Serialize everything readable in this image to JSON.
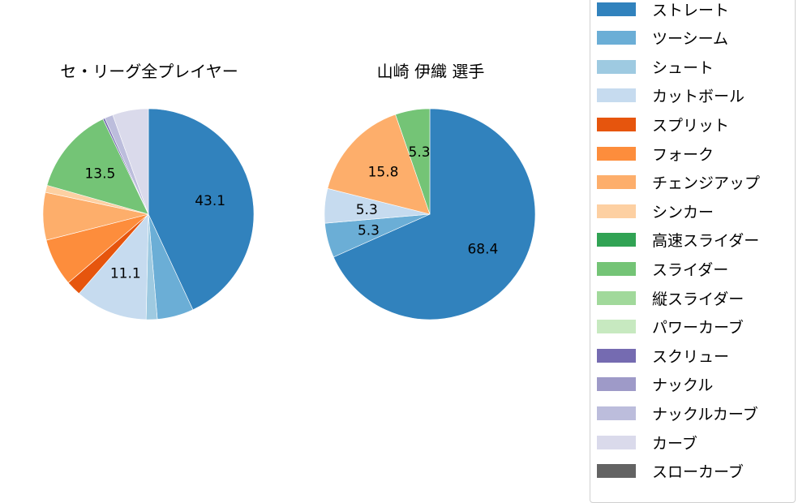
{
  "chart_data": [
    {
      "type": "pie",
      "title": "セ・リーグ全プレイヤー",
      "start_angle": "12 o'clock, clockwise",
      "slices": [
        {
          "label": "ストレート",
          "value": 43.1,
          "color": "#3182bd",
          "shown_label": "43.1"
        },
        {
          "label": "ツーシーム",
          "value": 5.6,
          "color": "#6baed6"
        },
        {
          "label": "シュート",
          "value": 1.7,
          "color": "#9ecae1"
        },
        {
          "label": "カットボール",
          "value": 11.1,
          "color": "#c6dbef",
          "shown_label": "11.1"
        },
        {
          "label": "スプリット",
          "value": 2.3,
          "color": "#e6550d"
        },
        {
          "label": "フォーク",
          "value": 7.3,
          "color": "#fd8d3c"
        },
        {
          "label": "チェンジアップ",
          "value": 7.3,
          "color": "#fdae6b"
        },
        {
          "label": "シンカー",
          "value": 1.1,
          "color": "#fdd0a2"
        },
        {
          "label": "スライダー",
          "value": 13.5,
          "color": "#74c476",
          "shown_label": "13.5"
        },
        {
          "label": "スクリュー",
          "value": 0.3,
          "color": "#756bb1"
        },
        {
          "label": "ナックルカーブ",
          "value": 1.3,
          "color": "#bcbddc"
        },
        {
          "label": "カーブ",
          "value": 5.5,
          "color": "#dadaeb"
        }
      ]
    },
    {
      "type": "pie",
      "title": "山崎 伊織  選手",
      "start_angle": "12 o'clock, clockwise",
      "slices": [
        {
          "label": "ストレート",
          "value": 68.4,
          "color": "#3182bd",
          "shown_label": "68.4"
        },
        {
          "label": "ツーシーム",
          "value": 5.3,
          "color": "#6baed6",
          "shown_label": "5.3"
        },
        {
          "label": "カットボール",
          "value": 5.3,
          "color": "#c6dbef",
          "shown_label": "5.3"
        },
        {
          "label": "チェンジアップ",
          "value": 15.8,
          "color": "#fdae6b",
          "shown_label": "15.8"
        },
        {
          "label": "スライダー",
          "value": 5.3,
          "color": "#74c476",
          "shown_label": "5.3"
        }
      ]
    }
  ],
  "titles": {
    "left": "セ・リーグ全プレイヤー",
    "right": "山崎 伊織  選手"
  },
  "legend": [
    {
      "label": "ストレート",
      "color": "#3182bd"
    },
    {
      "label": "ツーシーム",
      "color": "#6baed6"
    },
    {
      "label": "シュート",
      "color": "#9ecae1"
    },
    {
      "label": "カットボール",
      "color": "#c6dbef"
    },
    {
      "label": "スプリット",
      "color": "#e6550d"
    },
    {
      "label": "フォーク",
      "color": "#fd8d3c"
    },
    {
      "label": "チェンジアップ",
      "color": "#fdae6b"
    },
    {
      "label": "シンカー",
      "color": "#fdd0a2"
    },
    {
      "label": "高速スライダー",
      "color": "#31a354"
    },
    {
      "label": "スライダー",
      "color": "#74c476"
    },
    {
      "label": "縦スライダー",
      "color": "#a1d99b"
    },
    {
      "label": "パワーカーブ",
      "color": "#c7e9c0"
    },
    {
      "label": "スクリュー",
      "color": "#756bb1"
    },
    {
      "label": "ナックル",
      "color": "#9e9ac8"
    },
    {
      "label": "ナックルカーブ",
      "color": "#bcbddc"
    },
    {
      "label": "カーブ",
      "color": "#dadaeb"
    },
    {
      "label": "スローカーブ",
      "color": "#636363"
    }
  ]
}
